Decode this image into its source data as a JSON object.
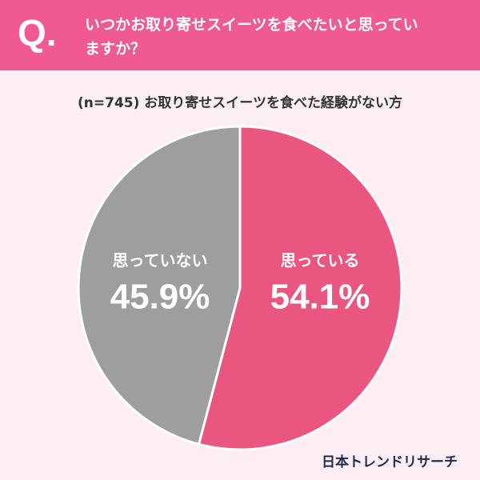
{
  "header": {
    "marker": "Q."
  },
  "chart_data": {
    "type": "pie",
    "title": "いつかお取り寄せスイーツを食べたいと思っていますか？",
    "subtitle": "(n=745) お取り寄せスイーツを食べた経験がない方",
    "categories": [
      "思っている",
      "思っていない"
    ],
    "values": [
      54.1,
      45.9
    ],
    "value_labels": [
      "54.1%",
      "45.9%"
    ],
    "colors": [
      "#e9567f",
      "#9e9e9e"
    ]
  },
  "footer": {
    "source": "日本トレンドリサーチ"
  }
}
